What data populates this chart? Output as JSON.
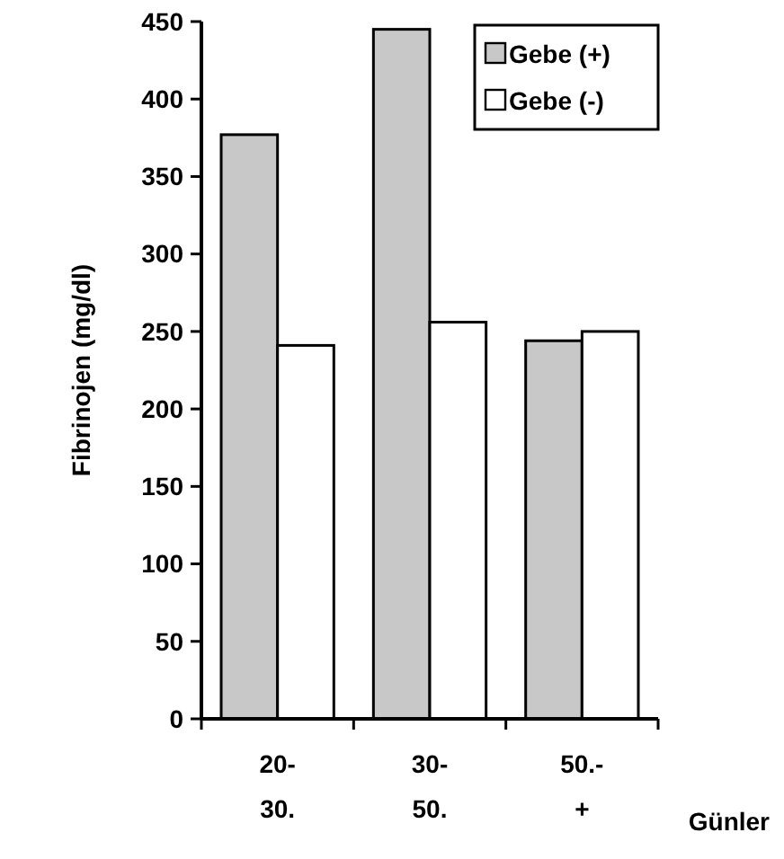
{
  "chart_data": {
    "type": "bar",
    "ylabel": "Fibrinojen (mg/dl)",
    "xlabel": "Günler",
    "categories": [
      "20-\n30.",
      "30-\n50.",
      "50.-\n+"
    ],
    "series": [
      {
        "name": "Gebe (+)",
        "color": "#c8c8c8",
        "values": [
          377,
          445,
          244
        ]
      },
      {
        "name": "Gebe (-)",
        "color": "#ffffff",
        "values": [
          241,
          256,
          250
        ]
      }
    ],
    "ylim": [
      0,
      450
    ],
    "yticks": [
      0,
      50,
      100,
      150,
      200,
      250,
      300,
      350,
      400,
      450
    ],
    "legend": "top right",
    "grid": false
  }
}
